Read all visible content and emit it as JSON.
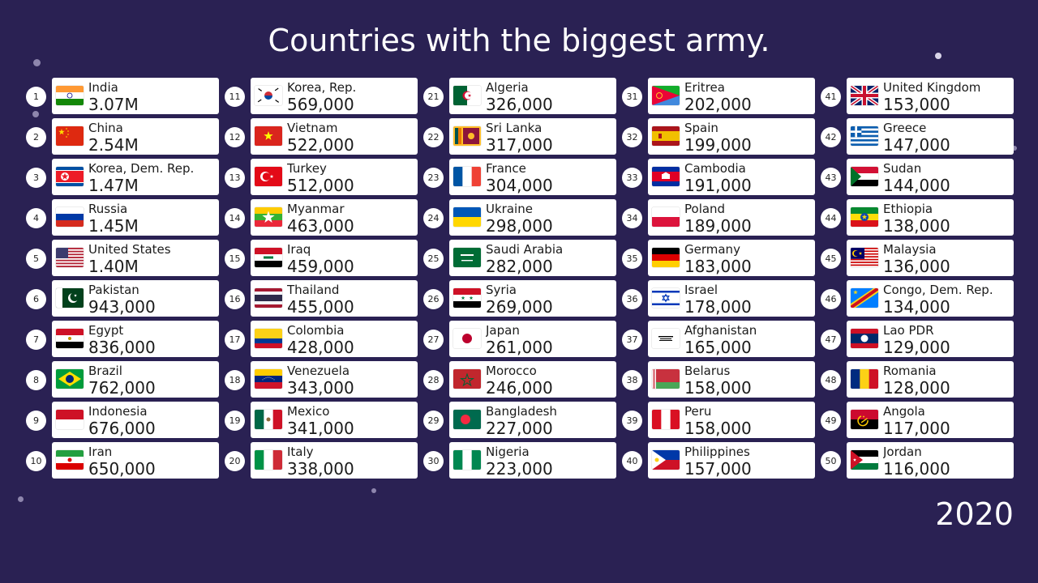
{
  "title": "Countries with the biggest army.",
  "year": "2020",
  "colors": {
    "background": "#2a2153",
    "card": "#ffffff",
    "text": "#1b1b1b"
  },
  "entries": [
    {
      "rank": "1",
      "name": "India",
      "value": "3.07M",
      "flag": "in"
    },
    {
      "rank": "2",
      "name": "China",
      "value": "2.54M",
      "flag": "cn"
    },
    {
      "rank": "3",
      "name": "Korea, Dem. Rep.",
      "value": "1.47M",
      "flag": "kp"
    },
    {
      "rank": "4",
      "name": "Russia",
      "value": "1.45M",
      "flag": "ru"
    },
    {
      "rank": "5",
      "name": "United States",
      "value": "1.40M",
      "flag": "us"
    },
    {
      "rank": "6",
      "name": "Pakistan",
      "value": "943,000",
      "flag": "pk"
    },
    {
      "rank": "7",
      "name": "Egypt",
      "value": "836,000",
      "flag": "eg"
    },
    {
      "rank": "8",
      "name": "Brazil",
      "value": "762,000",
      "flag": "br"
    },
    {
      "rank": "9",
      "name": "Indonesia",
      "value": "676,000",
      "flag": "id"
    },
    {
      "rank": "10",
      "name": "Iran",
      "value": "650,000",
      "flag": "ir"
    },
    {
      "rank": "11",
      "name": "Korea, Rep.",
      "value": "569,000",
      "flag": "kr"
    },
    {
      "rank": "12",
      "name": "Vietnam",
      "value": "522,000",
      "flag": "vn"
    },
    {
      "rank": "13",
      "name": "Turkey",
      "value": "512,000",
      "flag": "tr"
    },
    {
      "rank": "14",
      "name": "Myanmar",
      "value": "463,000",
      "flag": "mm"
    },
    {
      "rank": "15",
      "name": "Iraq",
      "value": "459,000",
      "flag": "iq"
    },
    {
      "rank": "16",
      "name": "Thailand",
      "value": "455,000",
      "flag": "th"
    },
    {
      "rank": "17",
      "name": "Colombia",
      "value": "428,000",
      "flag": "co"
    },
    {
      "rank": "18",
      "name": "Venezuela",
      "value": "343,000",
      "flag": "ve"
    },
    {
      "rank": "19",
      "name": "Mexico",
      "value": "341,000",
      "flag": "mx"
    },
    {
      "rank": "20",
      "name": "Italy",
      "value": "338,000",
      "flag": "it"
    },
    {
      "rank": "21",
      "name": "Algeria",
      "value": "326,000",
      "flag": "dz"
    },
    {
      "rank": "22",
      "name": "Sri Lanka",
      "value": "317,000",
      "flag": "lk"
    },
    {
      "rank": "23",
      "name": "France",
      "value": "304,000",
      "flag": "fr"
    },
    {
      "rank": "24",
      "name": "Ukraine",
      "value": "298,000",
      "flag": "ua"
    },
    {
      "rank": "25",
      "name": "Saudi Arabia",
      "value": "282,000",
      "flag": "sa"
    },
    {
      "rank": "26",
      "name": "Syria",
      "value": "269,000",
      "flag": "sy"
    },
    {
      "rank": "27",
      "name": "Japan",
      "value": "261,000",
      "flag": "jp"
    },
    {
      "rank": "28",
      "name": "Morocco",
      "value": "246,000",
      "flag": "ma"
    },
    {
      "rank": "29",
      "name": "Bangladesh",
      "value": "227,000",
      "flag": "bd"
    },
    {
      "rank": "30",
      "name": "Nigeria",
      "value": "223,000",
      "flag": "ng"
    },
    {
      "rank": "31",
      "name": "Eritrea",
      "value": "202,000",
      "flag": "er"
    },
    {
      "rank": "32",
      "name": "Spain",
      "value": "199,000",
      "flag": "es"
    },
    {
      "rank": "33",
      "name": "Cambodia",
      "value": "191,000",
      "flag": "kh"
    },
    {
      "rank": "34",
      "name": "Poland",
      "value": "189,000",
      "flag": "pl"
    },
    {
      "rank": "35",
      "name": "Germany",
      "value": "183,000",
      "flag": "de"
    },
    {
      "rank": "36",
      "name": "Israel",
      "value": "178,000",
      "flag": "il"
    },
    {
      "rank": "37",
      "name": "Afghanistan",
      "value": "165,000",
      "flag": "af"
    },
    {
      "rank": "38",
      "name": "Belarus",
      "value": "158,000",
      "flag": "by"
    },
    {
      "rank": "39",
      "name": "Peru",
      "value": "158,000",
      "flag": "pe"
    },
    {
      "rank": "40",
      "name": "Philippines",
      "value": "157,000",
      "flag": "ph"
    },
    {
      "rank": "41",
      "name": "United Kingdom",
      "value": "153,000",
      "flag": "gb"
    },
    {
      "rank": "42",
      "name": "Greece",
      "value": "147,000",
      "flag": "gr"
    },
    {
      "rank": "43",
      "name": "Sudan",
      "value": "144,000",
      "flag": "sd"
    },
    {
      "rank": "44",
      "name": "Ethiopia",
      "value": "138,000",
      "flag": "et"
    },
    {
      "rank": "45",
      "name": "Malaysia",
      "value": "136,000",
      "flag": "my"
    },
    {
      "rank": "46",
      "name": "Congo, Dem. Rep.",
      "value": "134,000",
      "flag": "cd"
    },
    {
      "rank": "47",
      "name": "Lao PDR",
      "value": "129,000",
      "flag": "la"
    },
    {
      "rank": "48",
      "name": "Romania",
      "value": "128,000",
      "flag": "ro"
    },
    {
      "rank": "49",
      "name": "Angola",
      "value": "117,000",
      "flag": "ao"
    },
    {
      "rank": "50",
      "name": "Jordan",
      "value": "116,000",
      "flag": "jo"
    }
  ]
}
